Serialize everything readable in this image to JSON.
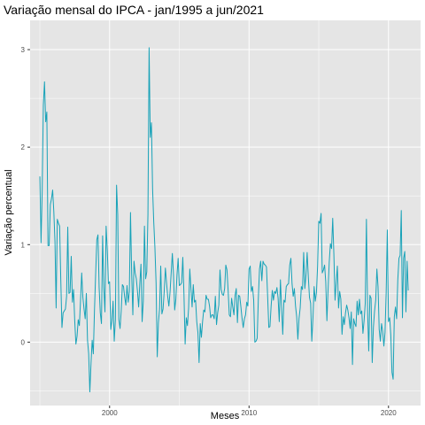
{
  "chart_data": {
    "type": "line",
    "title": "Variação mensal do IPCA - jan/1995 a jun/2021",
    "xlabel": "Meses",
    "ylabel": "Variação percentual",
    "x_range": [
      "1995-01",
      "2021-06"
    ],
    "xlim": [
      1994.3,
      2022.3
    ],
    "ylim": [
      -0.65,
      3.3
    ],
    "x_ticks": [
      2000,
      2010,
      2020
    ],
    "y_ticks": [
      0,
      1,
      2,
      3
    ],
    "grid": true,
    "legend": "none",
    "colors": {
      "line": "#17a2b8",
      "panel": "#e5e5e5",
      "grid": "#ffffff"
    },
    "series": [
      {
        "values": [
          1.7,
          1.02,
          1.55,
          2.43,
          2.67,
          2.26,
          2.36,
          0.99,
          0.99,
          1.41,
          1.47,
          1.56,
          1.34,
          1.03,
          0.35,
          1.26,
          1.22,
          1.19,
          0.64,
          0.15,
          0.3,
          0.32,
          0.34,
          0.47,
          1.18,
          0.5,
          0.51,
          0.88,
          0.41,
          0.54,
          0.22,
          -0.02,
          0.06,
          0.23,
          0.17,
          0.43,
          0.71,
          0.46,
          0.34,
          0.24,
          0.5,
          0.02,
          -0.12,
          -0.51,
          -0.22,
          0.02,
          -0.12,
          0.33,
          0.7,
          1.05,
          1.1,
          0.56,
          0.3,
          0.19,
          1.09,
          0.56,
          0.31,
          1.19,
          0.95,
          0.6,
          0.62,
          0.13,
          0.22,
          0.42,
          0.01,
          0.23,
          1.61,
          1.31,
          0.23,
          0.14,
          0.32,
          0.59,
          0.57,
          0.46,
          0.38,
          0.58,
          0.41,
          0.52,
          1.33,
          0.7,
          0.28,
          0.83,
          0.71,
          0.65,
          0.52,
          0.36,
          0.6,
          0.8,
          0.21,
          0.42,
          1.19,
          0.65,
          0.72,
          1.31,
          3.02,
          2.1,
          2.25,
          1.57,
          1.23,
          0.97,
          0.61,
          -0.15,
          0.2,
          0.34,
          0.78,
          0.29,
          0.34,
          0.52,
          0.76,
          0.61,
          0.47,
          0.37,
          0.51,
          0.71,
          0.91,
          0.69,
          0.33,
          0.44,
          0.69,
          0.86,
          0.58,
          0.59,
          0.61,
          0.87,
          0.49,
          -0.02,
          0.25,
          0.17,
          0.35,
          0.75,
          0.55,
          0.36,
          0.59,
          0.41,
          0.43,
          0.21,
          0.1,
          -0.21,
          0.19,
          0.05,
          0.21,
          0.33,
          0.31,
          0.48,
          0.44,
          0.44,
          0.37,
          0.25,
          0.28,
          0.28,
          0.24,
          0.47,
          0.18,
          0.3,
          0.38,
          0.74,
          0.54,
          0.49,
          0.48,
          0.55,
          0.79,
          0.74,
          0.53,
          0.28,
          0.26,
          0.45,
          0.36,
          0.28,
          0.48,
          0.55,
          0.2,
          0.48,
          0.47,
          0.36,
          0.24,
          0.15,
          0.24,
          0.28,
          0.41,
          0.37,
          0.75,
          0.78,
          0.52,
          0.57,
          0.43,
          0.0,
          0.01,
          0.04,
          0.45,
          0.75,
          0.83,
          0.63,
          0.83,
          0.8,
          0.79,
          0.77,
          0.47,
          0.15,
          0.16,
          0.37,
          0.53,
          0.43,
          0.52,
          0.5,
          0.56,
          0.45,
          0.21,
          0.64,
          0.36,
          0.08,
          0.43,
          0.41,
          0.57,
          0.59,
          0.6,
          0.79,
          0.86,
          0.6,
          0.47,
          0.55,
          0.37,
          0.26,
          0.03,
          0.24,
          0.35,
          0.57,
          0.54,
          0.92,
          0.55,
          0.69,
          0.92,
          0.67,
          0.46,
          0.4,
          0.01,
          0.25,
          0.57,
          0.42,
          0.51,
          0.78,
          1.24,
          1.22,
          1.32,
          0.71,
          0.74,
          0.79,
          0.62,
          0.22,
          0.54,
          0.82,
          1.01,
          0.96,
          1.27,
          0.9,
          0.43,
          0.61,
          0.78,
          0.35,
          0.52,
          0.44,
          0.08,
          0.26,
          0.18,
          0.3,
          0.38,
          0.33,
          0.25,
          0.14,
          0.31,
          -0.23,
          0.24,
          0.19,
          0.16,
          0.42,
          0.28,
          0.44,
          0.29,
          0.32,
          0.09,
          0.22,
          0.4,
          1.26,
          0.33,
          -0.09,
          0.48,
          0.45,
          -0.21,
          0.15,
          0.32,
          0.43,
          0.75,
          0.57,
          0.13,
          0.01,
          0.19,
          0.11,
          -0.04,
          0.1,
          0.51,
          1.15,
          0.21,
          0.25,
          0.07,
          -0.31,
          -0.38,
          0.26,
          0.36,
          0.24,
          0.64,
          0.86,
          0.89,
          1.35,
          0.25,
          0.86,
          0.93,
          0.31,
          0.83,
          0.53
        ]
      }
    ]
  }
}
